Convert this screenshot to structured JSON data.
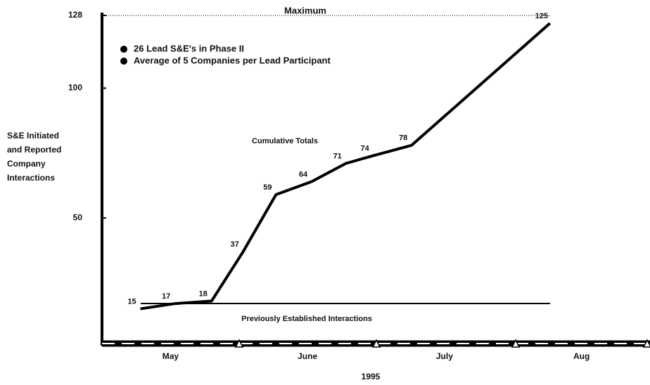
{
  "chart_data": {
    "type": "line",
    "title": "Maximum",
    "annotations": [
      "26 Lead S&E's in Phase II",
      "Average of 5 Companies per Lead Participant"
    ],
    "ylabel": [
      "S&E Initiated",
      "and Reported",
      "Company",
      "Interactions"
    ],
    "series_label": "Cumulative Totals",
    "baseline_label": "Previously Established Interactions",
    "xlabel": "1995",
    "x": [
      4.78,
      5.03,
      5.3,
      5.53,
      5.77,
      6.03,
      6.28,
      6.48,
      6.76,
      7.77
    ],
    "series": [
      {
        "name": "Cumulative Totals",
        "color": "#000000",
        "values": [
          15,
          17,
          18,
          37,
          59,
          64,
          71,
          74,
          78,
          125
        ]
      }
    ],
    "xlim": [
      4.5,
      8.5
    ],
    "xticks": [
      {
        "value": 5,
        "label": "May"
      },
      {
        "value": 6,
        "label": "June"
      },
      {
        "value": 7,
        "label": "July"
      },
      {
        "value": 8,
        "label": "Aug"
      }
    ],
    "ylim": [
      0,
      128
    ],
    "yticks": [
      50,
      100,
      128
    ]
  }
}
